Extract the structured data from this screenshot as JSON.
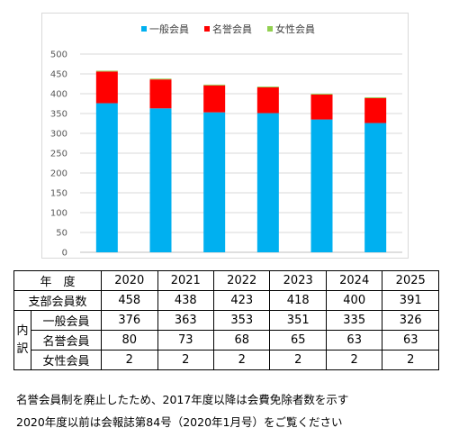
{
  "chart_data": {
    "type": "bar",
    "stacked": true,
    "categories": [
      "2020",
      "2021",
      "2022",
      "2023",
      "2024",
      "2025"
    ],
    "series": [
      {
        "name": "一般会員",
        "color": "#00b0f0",
        "values": [
          376,
          363,
          353,
          351,
          335,
          326
        ]
      },
      {
        "name": "名誉会員",
        "color": "#ff0000",
        "values": [
          80,
          73,
          68,
          65,
          63,
          63
        ]
      },
      {
        "name": "女性会員",
        "color": "#92d050",
        "values": [
          2,
          2,
          2,
          2,
          2,
          2
        ]
      }
    ],
    "ylim": [
      0,
      500
    ],
    "yticks": [
      "0",
      "50",
      "100",
      "150",
      "200",
      "250",
      "300",
      "350",
      "400",
      "450",
      "500"
    ],
    "grid": true,
    "legend": "top",
    "title": "",
    "xlabel": "",
    "ylabel": ""
  },
  "table": {
    "header_label": "年　度",
    "years": [
      "2020",
      "2021",
      "2022",
      "2023",
      "2024",
      "2025"
    ],
    "total_label": "支部会員数",
    "totals": [
      "458",
      "438",
      "423",
      "418",
      "400",
      "391"
    ],
    "breakdown_label": "内訳",
    "breakdown_char1": "内",
    "breakdown_char2": "訳",
    "rows": [
      {
        "label": "一般会員",
        "values": [
          "376",
          "363",
          "353",
          "351",
          "335",
          "326"
        ]
      },
      {
        "label": "名誉会員",
        "values": [
          "80",
          "73",
          "68",
          "65",
          "63",
          "63"
        ]
      },
      {
        "label": "女性会員",
        "values": [
          "2",
          "2",
          "2",
          "2",
          "2",
          "2"
        ]
      }
    ]
  },
  "notes": {
    "line1": "名誉会員制を廃止したため、2017年度以降は会費免除者数を示す",
    "line2": "2020年度以前は会報誌第84号（2020年1月号）をご覧ください"
  }
}
